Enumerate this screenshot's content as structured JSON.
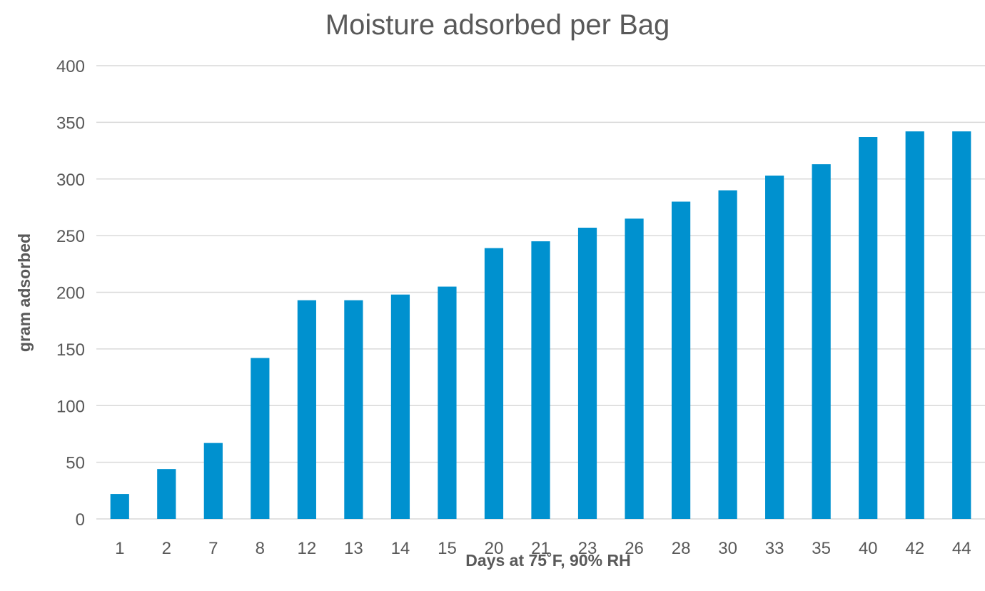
{
  "chart_data": {
    "type": "bar",
    "title": "Moisture adsorbed per Bag",
    "xlabel": "Days at 75˚F, 90% RH",
    "ylabel": "gram adsorbed",
    "categories": [
      "1",
      "2",
      "7",
      "8",
      "12",
      "13",
      "14",
      "15",
      "20",
      "21",
      "23",
      "26",
      "28",
      "30",
      "33",
      "35",
      "40",
      "42",
      "44"
    ],
    "values": [
      22,
      44,
      67,
      142,
      193,
      193,
      198,
      205,
      239,
      245,
      257,
      265,
      280,
      290,
      303,
      313,
      337,
      342,
      342
    ],
    "ylim": [
      0,
      400
    ],
    "yticks": [
      0,
      50,
      100,
      150,
      200,
      250,
      300,
      350,
      400
    ],
    "grid": true,
    "legend": "none",
    "bar_color": "#0091CF"
  }
}
